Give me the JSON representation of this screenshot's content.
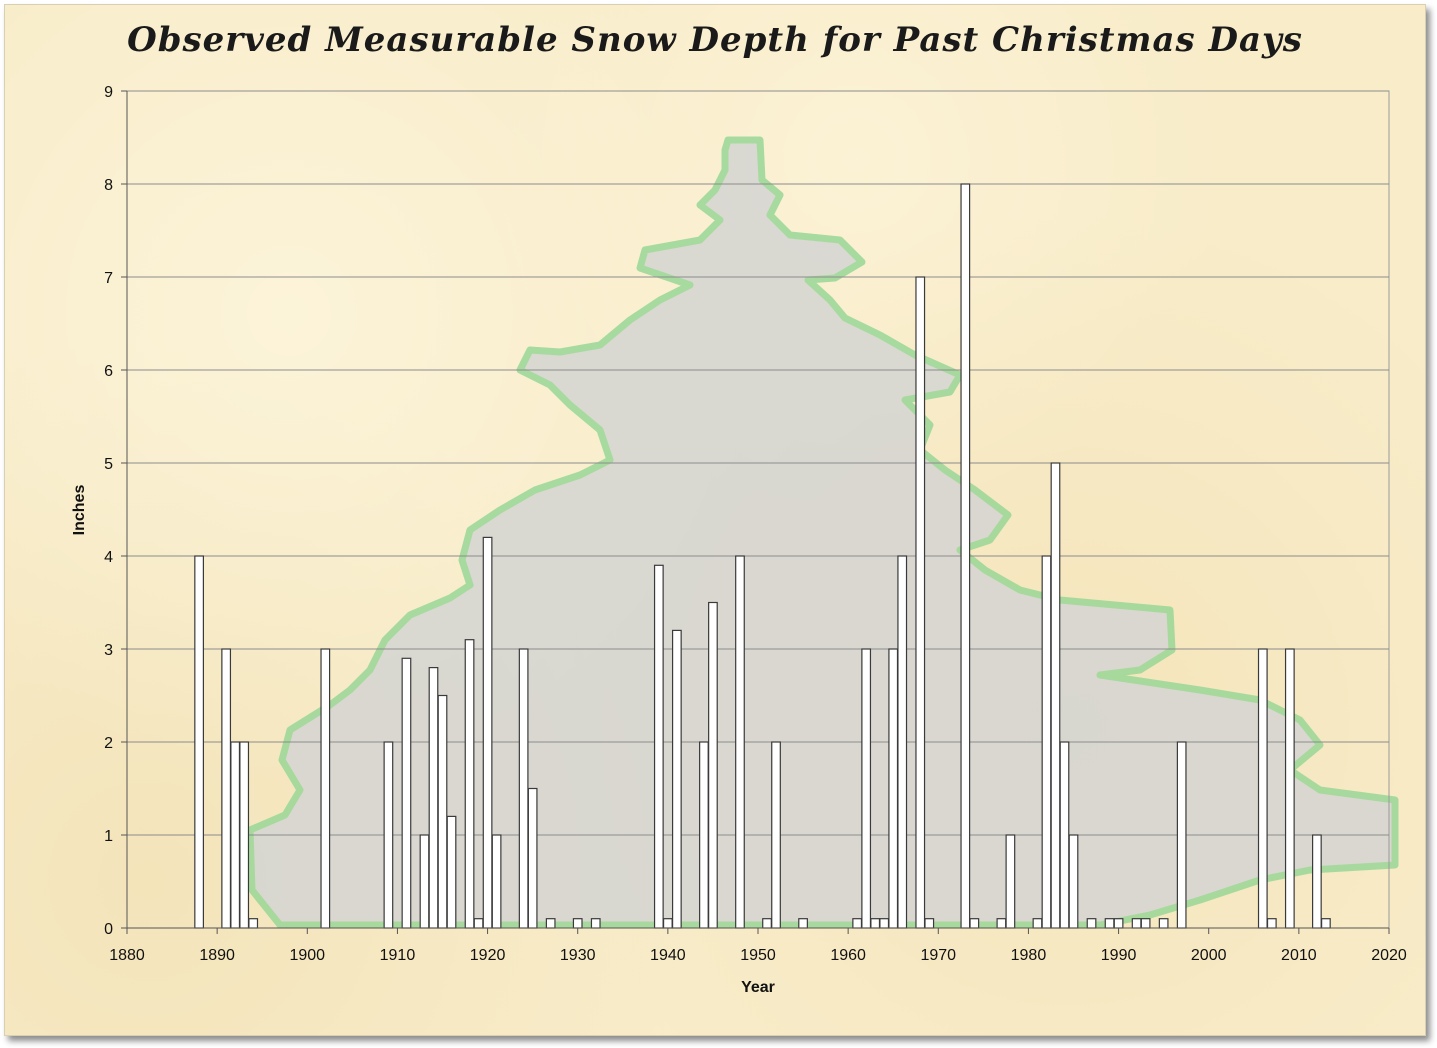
{
  "chart_data": {
    "type": "bar",
    "title": "Observed Measurable Snow Depth for Past Christmas Days",
    "xlabel": "Year",
    "ylabel": "Inches",
    "xlim": [
      1880,
      2020
    ],
    "ylim": [
      0,
      9
    ],
    "xticks": [
      1880,
      1890,
      1900,
      1910,
      1920,
      1930,
      1940,
      1950,
      1960,
      1970,
      1980,
      1990,
      2000,
      2010,
      2020
    ],
    "yticks": [
      0,
      1,
      2,
      3,
      4,
      5,
      6,
      7,
      8,
      9
    ],
    "grid": "horizontal",
    "legend": "none",
    "bar_color": "#ffffff",
    "bar_edge_color": "#3a3a3a",
    "x": [
      1888,
      1891,
      1892,
      1893,
      1894,
      1902,
      1909,
      1911,
      1913,
      1914,
      1915,
      1916,
      1918,
      1919,
      1920,
      1921,
      1924,
      1925,
      1927,
      1930,
      1932,
      1939,
      1940,
      1941,
      1944,
      1945,
      1948,
      1951,
      1952,
      1955,
      1961,
      1962,
      1963,
      1964,
      1965,
      1966,
      1968,
      1969,
      1973,
      1974,
      1977,
      1978,
      1981,
      1982,
      1983,
      1984,
      1985,
      1987,
      1989,
      1990,
      1992,
      1993,
      1995,
      1997,
      2006,
      2007,
      2009,
      2012,
      2013
    ],
    "values": [
      4,
      3,
      2,
      2,
      0.1,
      3,
      2,
      2.9,
      1,
      2.8,
      2.5,
      1.2,
      3.1,
      0.1,
      4.2,
      1,
      3,
      1.5,
      0.1,
      0.1,
      0.1,
      3.9,
      0.1,
      3.2,
      2,
      3.5,
      4,
      0.1,
      2,
      0.1,
      0.1,
      3,
      0.1,
      0.1,
      3,
      4,
      7,
      0.1,
      8,
      0.1,
      0.1,
      1,
      0.1,
      4,
      5,
      2,
      1,
      0.1,
      0.1,
      0.1,
      0.1,
      0.1,
      0.1,
      2,
      3,
      0.1,
      3,
      1,
      0.1
    ]
  }
}
